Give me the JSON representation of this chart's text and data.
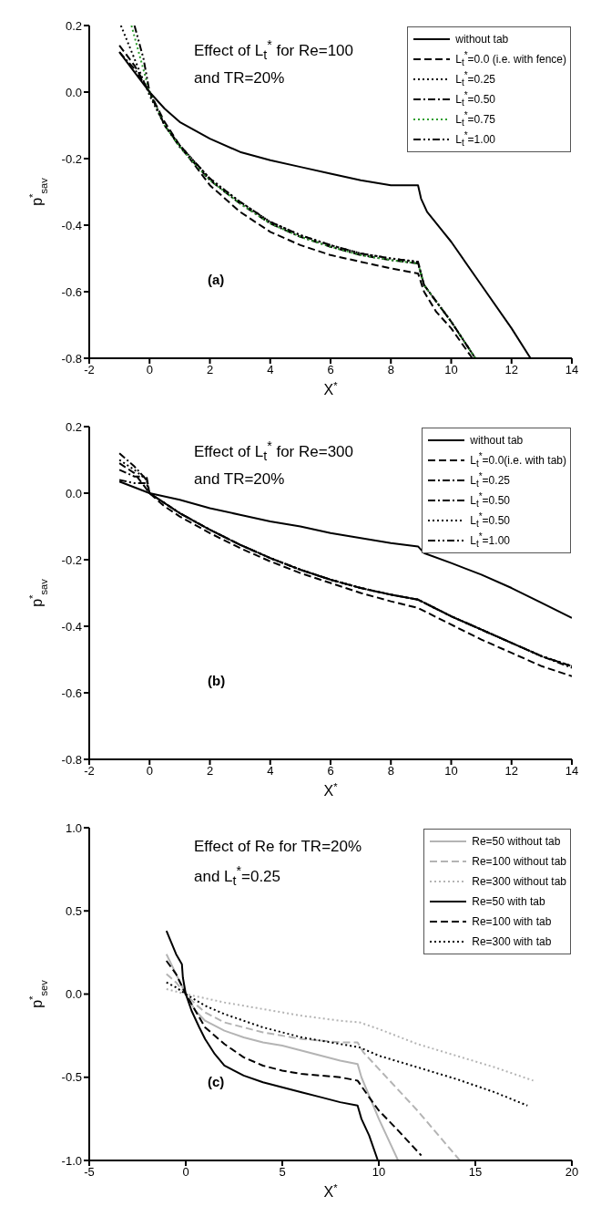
{
  "chart_data": [
    {
      "type": "line",
      "title": "Effect of L$_{t}$$^{*}$ for Re=100\nand TR=20%",
      "xlabel": "X$^{*}$",
      "ylabel": "p$^{*}$$_{sav}$",
      "annotations": [
        "(a)"
      ],
      "xlim": [
        -2,
        14
      ],
      "ylim": [
        -0.8,
        0.2
      ],
      "xticks": [
        -2,
        0,
        2,
        4,
        6,
        8,
        10,
        12,
        14
      ],
      "yticks": [
        -0.8,
        -0.6,
        -0.4,
        -0.2,
        {
          "value": 0,
          "label": "0.0"
        },
        0.2
      ],
      "grid": false,
      "legend": "top right",
      "series": [
        {
          "name": "without tab",
          "color": "#000000",
          "line_style": "solid",
          "x": [
            -1,
            -0.5,
            0,
            0.5,
            1,
            2,
            3,
            4,
            5,
            6,
            7,
            8,
            8.9,
            9,
            9.2,
            10,
            11,
            12,
            12.63
          ],
          "values": [
            0.12,
            0.06,
            0,
            -0.05,
            -0.09,
            -0.14,
            -0.18,
            -0.205,
            -0.225,
            -0.245,
            -0.265,
            -0.28,
            -0.28,
            -0.32,
            -0.36,
            -0.45,
            -0.58,
            -0.71,
            -0.8
          ]
        },
        {
          "name": "L$_{t}$$^{*}$=0.0 (i.e. with fence)",
          "color": "#000000",
          "line_style": "dashed",
          "x": [
            -1,
            -0.5,
            0,
            0.5,
            1,
            2,
            3,
            4,
            5,
            6,
            7,
            8,
            8.9,
            9.1,
            9.5,
            10,
            10.7
          ],
          "values": [
            0.14,
            0.08,
            0,
            -0.09,
            -0.16,
            -0.28,
            -0.36,
            -0.42,
            -0.46,
            -0.49,
            -0.51,
            -0.53,
            -0.545,
            -0.6,
            -0.66,
            -0.71,
            -0.8
          ]
        },
        {
          "name": "L$_{t}$$^{*}$=0.25",
          "color": "#000000",
          "line_style": "dotted",
          "x": [
            -0.95,
            -0.5,
            0,
            0.5,
            1,
            2,
            3,
            4,
            5,
            6,
            7,
            8,
            8.9,
            9.1,
            10,
            10.8
          ],
          "values": [
            0.2,
            0.1,
            -0.01,
            -0.1,
            -0.16,
            -0.26,
            -0.33,
            -0.39,
            -0.43,
            -0.46,
            -0.485,
            -0.5,
            -0.51,
            -0.58,
            -0.69,
            -0.8
          ]
        },
        {
          "name": "L$_{t}$$^{*}$=0.50",
          "color": "#000000",
          "line_style": "dashdot",
          "x": [
            -1,
            -0.5,
            0,
            0.5,
            1,
            2,
            3,
            4,
            5,
            6,
            7,
            8,
            8.9,
            9.1,
            10,
            10.8
          ],
          "values": [
            0.12,
            0.07,
            0,
            -0.1,
            -0.165,
            -0.265,
            -0.335,
            -0.395,
            -0.435,
            -0.465,
            -0.49,
            -0.505,
            -0.515,
            -0.58,
            -0.69,
            -0.8
          ]
        },
        {
          "name": "L$_{t}$$^{*}$=0.75",
          "color": "#2e9e2e",
          "line_style": "dotted",
          "x": [
            -0.6,
            -0.3,
            0,
            0.5,
            1,
            2,
            3,
            4,
            5,
            6,
            7,
            8,
            8.9,
            9.1,
            10,
            10.8
          ],
          "values": [
            0.2,
            0.1,
            0,
            -0.1,
            -0.165,
            -0.265,
            -0.335,
            -0.395,
            -0.435,
            -0.465,
            -0.49,
            -0.505,
            -0.515,
            -0.58,
            -0.69,
            -0.8
          ]
        },
        {
          "name": "L$_{t}$$^{*}$=1.00",
          "color": "#000000",
          "line_style": "dashdotdot",
          "x": [
            -0.5,
            -0.2,
            0,
            0.5,
            1,
            2,
            3,
            4,
            5,
            6,
            7,
            8,
            8.9,
            9.1,
            10,
            10.8
          ],
          "values": [
            0.2,
            0.1,
            0,
            -0.1,
            -0.16,
            -0.26,
            -0.33,
            -0.39,
            -0.43,
            -0.46,
            -0.485,
            -0.5,
            -0.51,
            -0.58,
            -0.69,
            -0.8
          ]
        }
      ]
    },
    {
      "type": "line",
      "title": "Effect of L$_{t}$$^{*}$ for Re=300\nand TR=20%",
      "xlabel": "X$^{*}$",
      "ylabel": "p$^{*}$$_{sav}$",
      "annotations": [
        "(b)"
      ],
      "xlim": [
        -2,
        14
      ],
      "ylim": [
        -0.8,
        0.2
      ],
      "xticks": [
        -2,
        0,
        2,
        4,
        6,
        8,
        10,
        12,
        14
      ],
      "yticks": [
        -0.8,
        -0.6,
        -0.4,
        -0.2,
        {
          "value": 0,
          "label": "0.0"
        },
        0.2
      ],
      "grid": false,
      "legend": "top right",
      "series": [
        {
          "name": "without tab",
          "color": "#000000",
          "line_style": "solid",
          "x": [
            -1,
            0,
            1,
            2,
            3,
            4,
            5,
            6,
            7,
            8,
            8.9,
            9.1,
            10,
            11,
            12,
            13,
            14
          ],
          "values": [
            0.035,
            0,
            -0.02,
            -0.045,
            -0.065,
            -0.085,
            -0.1,
            -0.12,
            -0.135,
            -0.15,
            -0.16,
            -0.18,
            -0.21,
            -0.245,
            -0.285,
            -0.33,
            -0.375
          ]
        },
        {
          "name": "L$_{t}$$^{*}$=0.0(i.e. with tab)",
          "color": "#000000",
          "line_style": "dashed",
          "x": [
            -1,
            -0.5,
            0,
            0.5,
            1,
            2,
            3,
            4,
            5,
            6,
            7,
            8,
            8.9,
            10,
            11,
            12,
            13,
            14
          ],
          "values": [
            0.09,
            0.06,
            0,
            -0.04,
            -0.07,
            -0.12,
            -0.165,
            -0.205,
            -0.24,
            -0.27,
            -0.3,
            -0.325,
            -0.345,
            -0.395,
            -0.44,
            -0.48,
            -0.52,
            -0.55
          ]
        },
        {
          "name": "L$_{t}$$^{*}$=0.25",
          "color": "#000000",
          "line_style": "dashdot",
          "x": [
            -1,
            -0.5,
            -0.1,
            0,
            0.5,
            1,
            2,
            3,
            4,
            5,
            6,
            7,
            8,
            8.9,
            10,
            11,
            12,
            13,
            14
          ],
          "values": [
            0.07,
            0.05,
            0.05,
            0,
            -0.03,
            -0.06,
            -0.11,
            -0.155,
            -0.195,
            -0.23,
            -0.26,
            -0.285,
            -0.305,
            -0.32,
            -0.37,
            -0.41,
            -0.45,
            -0.49,
            -0.52
          ]
        },
        {
          "name": "L$_{t}$$^{*}$=0.50",
          "color": "#000000",
          "line_style": "dashdot",
          "x": [
            -1,
            -0.5,
            -0.1,
            0,
            0.5,
            1,
            2,
            3,
            4,
            5,
            6,
            7,
            8,
            8.9,
            10,
            11,
            12,
            13,
            14
          ],
          "values": [
            0.12,
            0.08,
            0.04,
            0,
            -0.03,
            -0.06,
            -0.11,
            -0.155,
            -0.195,
            -0.23,
            -0.26,
            -0.285,
            -0.305,
            -0.32,
            -0.37,
            -0.41,
            -0.45,
            -0.49,
            -0.525
          ]
        },
        {
          "name": "L$_{t}$$^{*}$=0.50",
          "color": "#000000",
          "line_style": "dotted",
          "x": [
            -1,
            -0.5,
            -0.1,
            0,
            0.5,
            1,
            2,
            3,
            4,
            5,
            6,
            7,
            8,
            8.9,
            10,
            11,
            12,
            13,
            14
          ],
          "values": [
            0.1,
            0.07,
            0.04,
            0,
            -0.03,
            -0.06,
            -0.11,
            -0.155,
            -0.195,
            -0.23,
            -0.26,
            -0.285,
            -0.305,
            -0.32,
            -0.37,
            -0.41,
            -0.45,
            -0.49,
            -0.52
          ]
        },
        {
          "name": "L$_{t}$$^{*}$=1.00",
          "color": "#000000",
          "line_style": "dashdotdot",
          "x": [
            -1,
            -0.5,
            -0.1,
            0,
            0.5,
            1,
            2,
            3,
            4,
            5,
            6,
            7,
            8,
            8.9,
            10,
            11,
            12,
            13,
            14
          ],
          "values": [
            0.04,
            0.03,
            0.03,
            0,
            -0.03,
            -0.06,
            -0.11,
            -0.155,
            -0.195,
            -0.23,
            -0.26,
            -0.285,
            -0.305,
            -0.32,
            -0.37,
            -0.41,
            -0.45,
            -0.49,
            -0.52
          ]
        }
      ]
    },
    {
      "type": "line",
      "title": "Effect of Re for TR=20%\nand L$_{t}$$^{*}$=0.25",
      "xlabel": "X$^{*}$",
      "ylabel": "p$^{*}$$_{sev}$",
      "annotations": [
        "(c)"
      ],
      "xlim": [
        -5,
        20
      ],
      "ylim": [
        -1,
        1
      ],
      "xticks": [
        -5,
        0,
        5,
        10,
        15,
        20
      ],
      "yticks": [
        {
          "value": -1,
          "label": "-1.0"
        },
        -0.5,
        {
          "value": 0,
          "label": "0.0"
        },
        0.5,
        {
          "value": 1,
          "label": "1.0"
        }
      ],
      "grid": false,
      "legend": "top right",
      "series": [
        {
          "name": "Re=50 without tab",
          "color": "#b4b4b4",
          "line_style": "solid",
          "x": [
            -1,
            -0.5,
            0,
            0.5,
            1,
            2,
            3,
            4,
            5,
            6,
            7,
            8,
            8.9,
            9.1,
            10,
            11
          ],
          "values": [
            0.24,
            0.12,
            0,
            -0.1,
            -0.16,
            -0.22,
            -0.26,
            -0.29,
            -0.31,
            -0.34,
            -0.37,
            -0.4,
            -0.42,
            -0.5,
            -0.75,
            -1
          ]
        },
        {
          "name": "Re=100 without tab",
          "color": "#b4b4b4",
          "line_style": "dashed",
          "x": [
            -1,
            -0.5,
            0,
            0.5,
            1,
            2,
            3,
            4,
            5,
            6,
            7,
            8,
            8.9,
            9.2,
            10,
            12,
            14.2
          ],
          "values": [
            0.12,
            0.07,
            0,
            -0.06,
            -0.11,
            -0.17,
            -0.2,
            -0.23,
            -0.25,
            -0.27,
            -0.28,
            -0.29,
            -0.29,
            -0.35,
            -0.45,
            -0.7,
            -1
          ]
        },
        {
          "name": "Re=300 without tab",
          "color": "#b4b4b4",
          "line_style": "dotted",
          "x": [
            -1,
            0,
            2,
            4,
            6,
            8,
            9,
            10,
            12,
            14,
            16,
            18
          ],
          "values": [
            0.03,
            0,
            -0.05,
            -0.09,
            -0.13,
            -0.16,
            -0.17,
            -0.21,
            -0.3,
            -0.37,
            -0.44,
            -0.52
          ]
        },
        {
          "name": "Re=50 with tab",
          "color": "#000000",
          "line_style": "solid",
          "x": [
            -1,
            -0.5,
            -0.2,
            -0.15,
            0,
            0.3,
            0.7,
            1,
            1.5,
            2,
            3,
            4,
            5,
            6,
            7,
            8,
            8.9,
            9.1,
            9.5,
            9.95
          ],
          "values": [
            0.38,
            0.24,
            0.18,
            0.1,
            0,
            -0.1,
            -0.2,
            -0.27,
            -0.36,
            -0.43,
            -0.49,
            -0.53,
            -0.56,
            -0.59,
            -0.62,
            -0.65,
            -0.67,
            -0.75,
            -0.85,
            -1
          ]
        },
        {
          "name": "Re=100 with tab",
          "color": "#000000",
          "line_style": "dashed",
          "x": [
            -1,
            -0.5,
            0,
            0.5,
            1,
            2,
            3,
            4,
            5,
            6,
            7,
            8,
            8.9,
            9.5,
            10,
            11,
            12.2
          ],
          "values": [
            0.2,
            0.12,
            0,
            -0.1,
            -0.2,
            -0.3,
            -0.38,
            -0.43,
            -0.46,
            -0.48,
            -0.49,
            -0.5,
            -0.52,
            -0.62,
            -0.7,
            -0.82,
            -0.97
          ]
        },
        {
          "name": "Re=300 with tab",
          "color": "#000000",
          "line_style": "dotted",
          "x": [
            -1,
            -0.5,
            0,
            1,
            2,
            4,
            6,
            8,
            9,
            10,
            12,
            14,
            16,
            17.7
          ],
          "values": [
            0.07,
            0.04,
            0,
            -0.07,
            -0.12,
            -0.2,
            -0.26,
            -0.3,
            -0.32,
            -0.37,
            -0.44,
            -0.51,
            -0.59,
            -0.67
          ]
        }
      ]
    }
  ]
}
